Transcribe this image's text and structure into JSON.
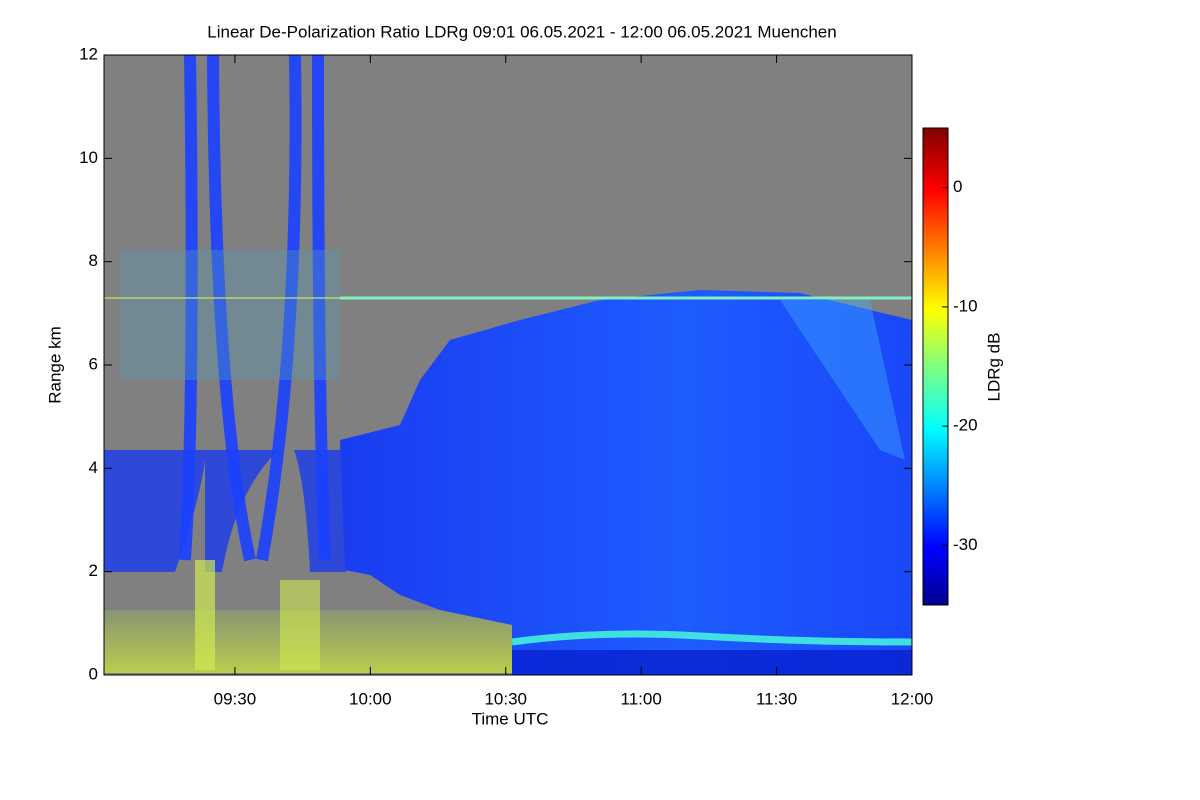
{
  "chart_data": {
    "type": "heatmap",
    "title": "Linear De-Polarization Ratio LDRg   09:01 06.05.2021 - 12:00 06.05.2021 Muenchen",
    "xlabel": "Time UTC",
    "ylabel": "Range km",
    "colorbar_label": "LDRg dB",
    "xlim": [
      541,
      720
    ],
    "xticks": [
      {
        "value": 570,
        "label": "09:30"
      },
      {
        "value": 600,
        "label": "10:00"
      },
      {
        "value": 630,
        "label": "10:30"
      },
      {
        "value": 660,
        "label": "11:00"
      },
      {
        "value": 690,
        "label": "11:30"
      },
      {
        "value": 720,
        "label": "12:00"
      }
    ],
    "ylim": [
      0,
      12
    ],
    "yticks": [
      0,
      2,
      4,
      6,
      8,
      10,
      12
    ],
    "clim": [
      -35,
      5
    ],
    "cticks": [
      0,
      -10,
      -20,
      -30
    ]
  }
}
